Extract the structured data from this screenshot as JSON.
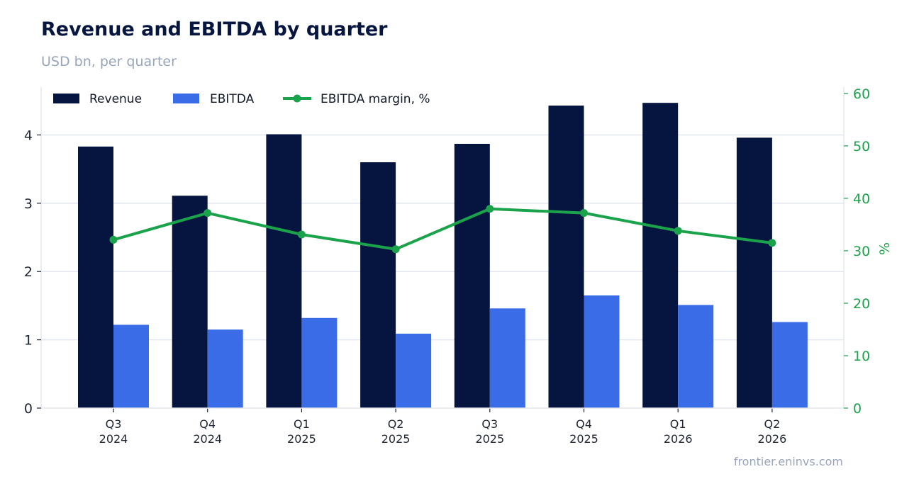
{
  "header": {
    "title": "Revenue and EBITDA by quarter",
    "subtitle": "USD bn, per quarter"
  },
  "footer": {
    "source": "frontier.eninvs.com"
  },
  "colors": {
    "revenue": "#05153f",
    "ebitda": "#3b6ce8",
    "margin": "#1aa34a",
    "grid": "#e3e7ef"
  },
  "chart_data": {
    "type": "bar",
    "categories": [
      [
        "Q3",
        "2024"
      ],
      [
        "Q4",
        "2024"
      ],
      [
        "Q1",
        "2025"
      ],
      [
        "Q2",
        "2025"
      ],
      [
        "Q3",
        "2025"
      ],
      [
        "Q4",
        "2025"
      ],
      [
        "Q1",
        "2026"
      ],
      [
        "Q2",
        "2026"
      ]
    ],
    "series": [
      {
        "name": "Revenue",
        "kind": "bar",
        "axis": "left",
        "values": [
          3.83,
          3.11,
          4.01,
          3.6,
          3.87,
          4.43,
          4.47,
          3.96
        ]
      },
      {
        "name": "EBITDA",
        "kind": "bar",
        "axis": "left",
        "values": [
          1.22,
          1.15,
          1.32,
          1.09,
          1.46,
          1.65,
          1.51,
          1.26
        ]
      },
      {
        "name": "EBITDA margin, %",
        "kind": "line",
        "axis": "right",
        "values": [
          32.1,
          37.2,
          33.1,
          30.3,
          38.0,
          37.2,
          33.8,
          31.5
        ]
      }
    ],
    "y_left": {
      "min": 0,
      "max": 4.7,
      "ticks": [
        0,
        1,
        2,
        3,
        4
      ],
      "label": ""
    },
    "y_right": {
      "min": 0,
      "max": 61.2,
      "ticks": [
        0,
        10,
        20,
        30,
        40,
        50,
        60
      ],
      "label": "%"
    },
    "grid": "horizontal",
    "legend": "top-left"
  }
}
